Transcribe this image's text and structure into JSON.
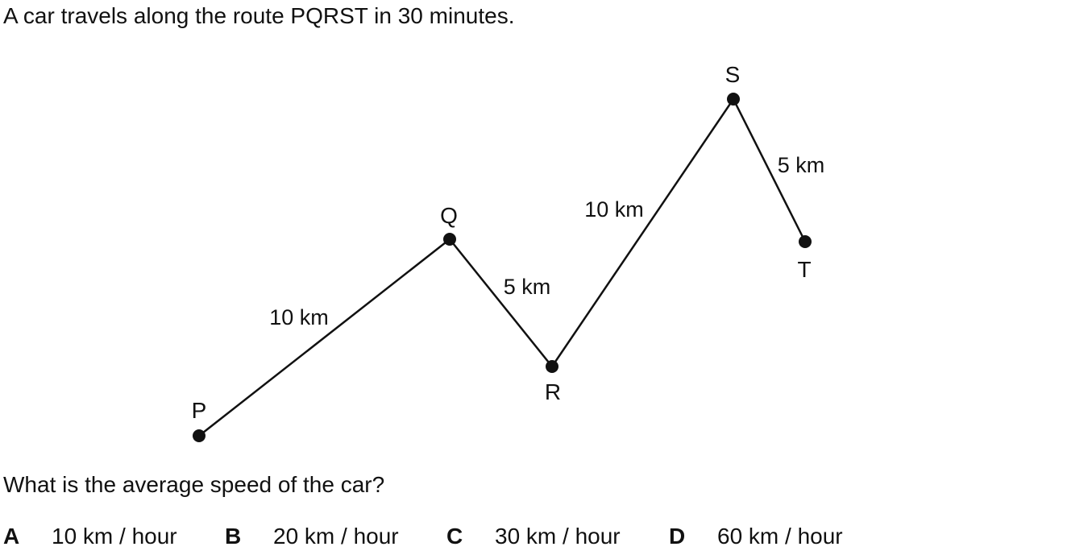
{
  "intro_text": "A car travels along the route PQRST in 30 minutes.",
  "question_text": "What is the average speed of the car?",
  "diagram": {
    "points": [
      {
        "label": "P"
      },
      {
        "label": "Q"
      },
      {
        "label": "R"
      },
      {
        "label": "S"
      },
      {
        "label": "T"
      }
    ],
    "segments": [
      {
        "from": "P",
        "to": "Q",
        "distance": "10 km"
      },
      {
        "from": "Q",
        "to": "R",
        "distance": "5 km"
      },
      {
        "from": "R",
        "to": "S",
        "distance": "10 km"
      },
      {
        "from": "S",
        "to": "T",
        "distance": "5 km"
      }
    ]
  },
  "options": [
    {
      "letter": "A",
      "value": "10 km / hour"
    },
    {
      "letter": "B",
      "value": "20 km / hour"
    },
    {
      "letter": "C",
      "value": "30 km / hour"
    },
    {
      "letter": "D",
      "value": "60 km / hour"
    }
  ]
}
